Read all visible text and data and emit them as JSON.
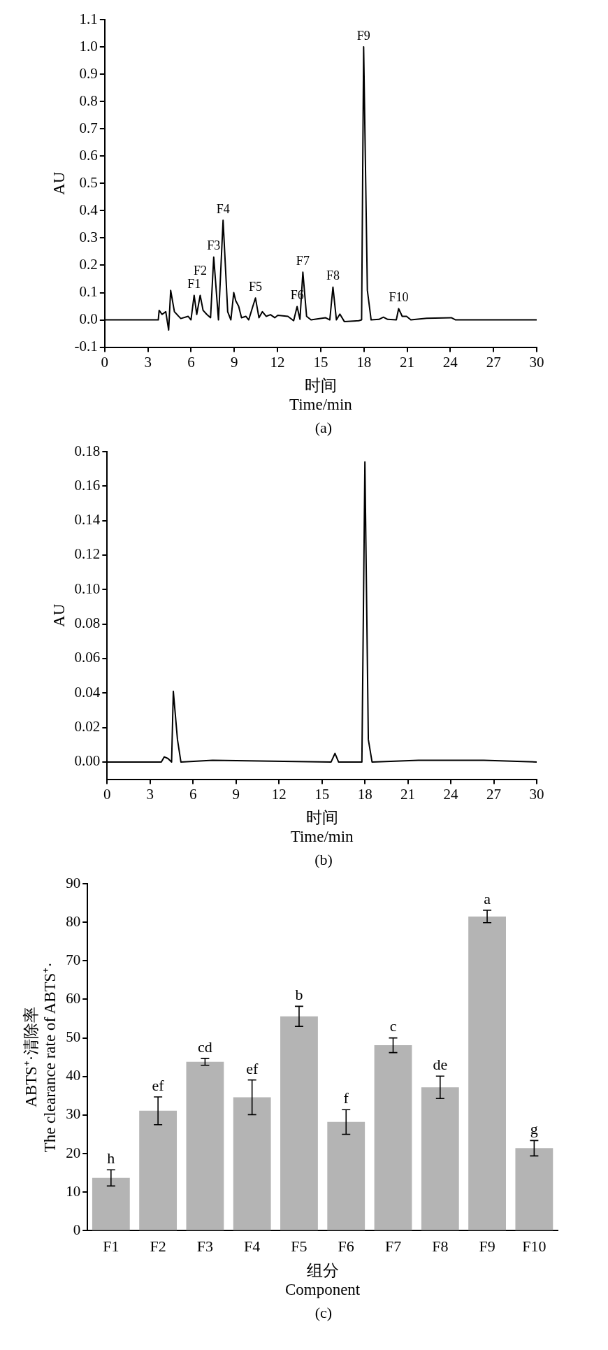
{
  "chart_data": [
    {
      "type": "line",
      "xlabel": "时间\nTime/min",
      "ylabel": "AU",
      "color": "#000000",
      "x": [
        0,
        3.72,
        3.78,
        3.98,
        4.24,
        4.44,
        4.58,
        4.84,
        5.28,
        5.79,
        5.99,
        6.21,
        6.39,
        6.63,
        6.83,
        7.09,
        7.35,
        7.57,
        7.9,
        8.22,
        8.54,
        8.76,
        8.96,
        9.1,
        9.3,
        9.5,
        9.8,
        10.0,
        10.27,
        10.47,
        10.71,
        10.95,
        11.21,
        11.51,
        11.81,
        12.02,
        12.72,
        13.12,
        13.36,
        13.56,
        13.76,
        14.02,
        14.33,
        15.33,
        15.63,
        15.85,
        16.09,
        16.33,
        16.64,
        17.64,
        17.84,
        17.98,
        18.24,
        18.5,
        19.05,
        19.35,
        19.65,
        20.25,
        20.41,
        20.66,
        20.96,
        21.26,
        22.36,
        24.07,
        24.37,
        30
      ],
      "values": [
        0,
        0,
        0.035,
        0.02,
        0.03,
        -0.037,
        0.108,
        0.03,
        0.005,
        0.013,
        0,
        0.09,
        0.02,
        0.09,
        0.035,
        0.02,
        0.008,
        0.23,
        0,
        0.365,
        0.03,
        0,
        0.1,
        0.07,
        0.05,
        0.008,
        0.013,
        0,
        0.047,
        0.08,
        0.008,
        0.03,
        0.013,
        0.019,
        0.008,
        0.017,
        0.013,
        -0.003,
        0.049,
        0.002,
        0.175,
        0.013,
        0,
        0.008,
        0,
        0.12,
        0,
        0.021,
        -0.006,
        -0.003,
        0,
        1.0,
        0.108,
        0,
        0.002,
        0.01,
        0.002,
        0,
        0.041,
        0.013,
        0.013,
        0,
        0.006,
        0.008,
        0,
        0
      ],
      "xlim": [
        0,
        30
      ],
      "xticks": [
        0,
        3,
        6,
        9,
        12,
        15,
        18,
        21,
        24,
        27,
        30
      ],
      "ylim": [
        -0.1,
        1.1
      ],
      "yticks": [
        {
          "value": -0.1,
          "label": "-0.1"
        },
        {
          "value": 0,
          "label": "0.0"
        },
        {
          "value": 0.1,
          "label": "0.1"
        },
        {
          "value": 0.2,
          "label": "0.2"
        },
        {
          "value": 0.3,
          "label": "0.3"
        },
        {
          "value": 0.4,
          "label": "0.4"
        },
        {
          "value": 0.5,
          "label": "0.5"
        },
        {
          "value": 0.6,
          "label": "0.6"
        },
        {
          "value": 0.7,
          "label": "0.7"
        },
        {
          "value": 0.8,
          "label": "0.8"
        },
        {
          "value": 0.9,
          "label": "0.9"
        },
        {
          "value": 1.0,
          "label": "1.0"
        },
        {
          "value": 1.1,
          "label": "1.1"
        }
      ],
      "annotations": [
        {
          "text": "F1",
          "x": 6.21,
          "y": 0.09
        },
        {
          "text": "F2",
          "x": 6.63,
          "y": 0.09
        },
        {
          "text": "F3",
          "x": 7.57,
          "y": 0.23
        },
        {
          "text": "F4",
          "x": 8.22,
          "y": 0.365
        },
        {
          "text": "F5",
          "x": 10.47,
          "y": 0.08
        },
        {
          "text": "F6",
          "x": 13.36,
          "y": 0.049
        },
        {
          "text": "F7",
          "x": 13.76,
          "y": 0.175
        },
        {
          "text": "F8",
          "x": 15.85,
          "y": 0.12
        },
        {
          "text": "F9",
          "x": 17.98,
          "y": 1.0
        },
        {
          "text": "F10",
          "x": 20.41,
          "y": 0.041
        },
        "(a)"
      ]
    },
    {
      "type": "line",
      "xlabel": "时间\nTime/min",
      "ylabel": "AU",
      "color": "#000000",
      "x": [
        0,
        3.78,
        3.99,
        4.25,
        4.5,
        4.62,
        4.91,
        5.15,
        7.36,
        15.64,
        15.91,
        16.16,
        17.79,
        18.0,
        18.24,
        18.5,
        21.74,
        26.3,
        30
      ],
      "values": [
        0,
        0,
        0.003,
        0.002,
        0,
        0.041,
        0.013,
        0,
        0.001,
        0,
        0.005,
        0,
        0,
        0.174,
        0.013,
        0,
        0.001,
        0.001,
        0
      ],
      "xlim": [
        0,
        30
      ],
      "xticks": [
        0,
        3,
        6,
        9,
        12,
        15,
        18,
        21,
        24,
        27,
        30
      ],
      "ylim": [
        -0.01,
        0.18
      ],
      "yticks": [
        {
          "value": 0,
          "label": "0.00"
        },
        {
          "value": 0.02,
          "label": "0.02"
        },
        {
          "value": 0.04,
          "label": "0.04"
        },
        {
          "value": 0.06,
          "label": "0.06"
        },
        {
          "value": 0.08,
          "label": "0.08"
        },
        {
          "value": 0.1,
          "label": "0.10"
        },
        {
          "value": 0.12,
          "label": "0.12"
        },
        {
          "value": 0.14,
          "label": "0.14"
        },
        {
          "value": 0.16,
          "label": "0.16"
        },
        {
          "value": 0.18,
          "label": "0.18"
        }
      ],
      "annotations": [
        "(b)"
      ]
    },
    {
      "type": "bar",
      "xlabel": "组分\nComponent",
      "ylabel": "ABTS⁺·清除率\nThe clearance rate of ABTS⁺·",
      "color": "#b4b4b4",
      "categories": [
        "F1",
        "F2",
        "F3",
        "F4",
        "F5",
        "F6",
        "F7",
        "F8",
        "F9",
        "F10"
      ],
      "values": [
        13.7,
        31.1,
        43.8,
        34.6,
        55.6,
        28.2,
        48.1,
        37.2,
        81.5,
        21.4
      ],
      "errors": [
        2.1,
        3.6,
        0.9,
        4.5,
        2.6,
        3.2,
        1.9,
        2.9,
        1.6,
        2.0
      ],
      "value_labels": [
        "h",
        "ef",
        "cd",
        "ef",
        "b",
        "f",
        "c",
        "de",
        "a",
        "g"
      ],
      "ylim": [
        0,
        90
      ],
      "yticks": [
        0,
        10,
        20,
        30,
        40,
        50,
        60,
        70,
        80,
        90
      ],
      "annotations": [
        "(c)"
      ]
    }
  ]
}
